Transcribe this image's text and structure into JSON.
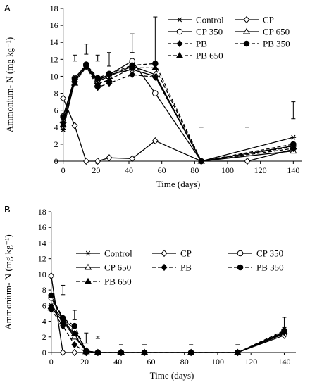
{
  "chart_data": [
    {
      "type": "line",
      "panel_label": "A",
      "xlabel": "Time (days)",
      "ylabel": "Ammonium- N (mg kg⁻¹)",
      "xlim": [
        -5,
        145
      ],
      "ylim": [
        0,
        18
      ],
      "xticks": [
        0,
        20,
        40,
        60,
        80,
        100,
        120,
        140
      ],
      "yticks": [
        0,
        2,
        4,
        6,
        8,
        10,
        12,
        14,
        16,
        18
      ],
      "grid": false,
      "legend": {
        "placement": "top-right",
        "columns": 2
      },
      "series": [
        {
          "name": "Control",
          "style": "solid",
          "marker": "asterisk",
          "x": [
            0,
            7,
            14,
            21,
            28,
            42,
            56,
            84,
            140
          ],
          "y": [
            3.7,
            9.5,
            11.2,
            9.5,
            10.2,
            10.8,
            10.0,
            0,
            2.8
          ]
        },
        {
          "name": "CP",
          "style": "solid",
          "marker": "diamond-open",
          "x": [
            0,
            7,
            14,
            21,
            28,
            42,
            56,
            84,
            112,
            140
          ],
          "y": [
            7.4,
            4.2,
            0,
            0,
            0.4,
            0.3,
            2.4,
            0,
            0,
            1.4
          ]
        },
        {
          "name": "CP 350",
          "style": "solid",
          "marker": "circle-open",
          "x": [
            0,
            7,
            14,
            21,
            28,
            42,
            56,
            84,
            140
          ],
          "y": [
            5.3,
            9.8,
            11.3,
            9.6,
            10.2,
            11.8,
            8.0,
            0,
            1.8
          ]
        },
        {
          "name": "CP 650",
          "style": "solid",
          "marker": "triangle-open",
          "x": [
            0,
            7,
            14,
            21,
            28,
            42,
            56,
            84,
            140
          ],
          "y": [
            4.8,
            9.6,
            11.0,
            9.4,
            10.0,
            11.2,
            10.2,
            0,
            1.2
          ]
        },
        {
          "name": "PB",
          "style": "dashed",
          "marker": "diamond-filled",
          "x": [
            0,
            7,
            14,
            21,
            28,
            42,
            56,
            84,
            140
          ],
          "y": [
            4.5,
            9.3,
            11.2,
            8.7,
            9.2,
            10.2,
            9.9,
            0,
            1.5
          ]
        },
        {
          "name": "PB 350",
          "style": "dashed",
          "marker": "circle-filled",
          "x": [
            0,
            7,
            14,
            21,
            28,
            42,
            56,
            84,
            140
          ],
          "y": [
            5.2,
            9.7,
            11.4,
            9.8,
            10.3,
            11.3,
            11.5,
            0,
            2.0
          ]
        },
        {
          "name": "PB 650",
          "style": "dashed",
          "marker": "triangle-filled",
          "x": [
            0,
            7,
            14,
            21,
            28,
            42,
            56,
            84,
            140
          ],
          "y": [
            4.3,
            9.2,
            11.1,
            9.1,
            9.6,
            11.0,
            11.0,
            0,
            1.7
          ]
        }
      ],
      "error_bars": [
        {
          "x": 7,
          "low": 11.8,
          "high": 12.5
        },
        {
          "x": 14,
          "low": 12.6,
          "high": 13.8
        },
        {
          "x": 21,
          "low": 11.8,
          "high": 12.5
        },
        {
          "x": 28,
          "low": 11.2,
          "high": 12.8
        },
        {
          "x": 42,
          "low": 12.8,
          "high": 15.0
        },
        {
          "x": 56,
          "low": 11.8,
          "high": 17.0
        },
        {
          "x": 84,
          "low": 4.0,
          "high": 4.0
        },
        {
          "x": 112,
          "low": 4.0,
          "high": 4.0
        },
        {
          "x": 140,
          "low": 5.0,
          "high": 7.0
        }
      ]
    },
    {
      "type": "line",
      "panel_label": "B",
      "xlabel": "Time (days)",
      "ylabel": "Ammonium- N (mg kg⁻¹)",
      "xlim": [
        -2,
        147
      ],
      "ylim": [
        0,
        18
      ],
      "xticks": [
        0,
        20,
        40,
        60,
        80,
        100,
        120,
        140
      ],
      "yticks": [
        0,
        2,
        4,
        6,
        8,
        10,
        12,
        14,
        16,
        18
      ],
      "grid": false,
      "legend": {
        "placement": "top",
        "columns": 3
      },
      "series": [
        {
          "name": "Control",
          "style": "solid",
          "marker": "asterisk",
          "x": [
            0,
            7,
            14,
            21,
            28,
            42,
            56,
            84,
            112,
            140
          ],
          "y": [
            6.0,
            4.3,
            2.2,
            0.2,
            0,
            0,
            0,
            0,
            0,
            2.6
          ]
        },
        {
          "name": "CP",
          "style": "solid",
          "marker": "diamond-open",
          "x": [
            0,
            7,
            14,
            21,
            28,
            42,
            56,
            84,
            112,
            140
          ],
          "y": [
            9.8,
            0,
            0,
            0,
            0,
            0,
            0,
            0,
            0,
            2.2
          ]
        },
        {
          "name": "CP 350",
          "style": "solid",
          "marker": "circle-open",
          "x": [
            0,
            7,
            14,
            21,
            28,
            42,
            56,
            84,
            112,
            140
          ],
          "y": [
            7.0,
            4.3,
            3.0,
            0.2,
            0,
            0,
            0,
            0,
            0,
            2.5
          ]
        },
        {
          "name": "CP 650",
          "style": "solid",
          "marker": "triangle-open",
          "x": [
            0,
            7,
            14,
            21,
            28,
            42,
            56,
            84,
            112,
            140
          ],
          "y": [
            5.7,
            4.0,
            2.0,
            0.2,
            0,
            0,
            0,
            0,
            0,
            2.4
          ]
        },
        {
          "name": "PB",
          "style": "dashed",
          "marker": "diamond-filled",
          "x": [
            0,
            7,
            14,
            21,
            28,
            42,
            56,
            84,
            112,
            140
          ],
          "y": [
            5.5,
            3.4,
            1.0,
            0,
            0,
            0,
            0,
            0,
            0,
            2.6
          ]
        },
        {
          "name": "PB 350",
          "style": "dashed",
          "marker": "circle-filled",
          "x": [
            0,
            7,
            14,
            21,
            28,
            42,
            56,
            84,
            112,
            140
          ],
          "y": [
            7.3,
            4.4,
            3.4,
            0.2,
            0,
            0,
            0,
            0,
            0,
            2.8
          ]
        },
        {
          "name": "PB 650",
          "style": "dashed",
          "marker": "triangle-filled",
          "x": [
            0,
            7,
            14,
            21,
            28,
            42,
            56,
            84,
            112,
            140
          ],
          "y": [
            5.9,
            3.9,
            2.4,
            0.1,
            0,
            0,
            0,
            0,
            0,
            2.7
          ]
        }
      ],
      "error_bars": [
        {
          "x": 7,
          "low": 7.4,
          "high": 8.6
        },
        {
          "x": 14,
          "low": 4.2,
          "high": 5.4
        },
        {
          "x": 21,
          "low": 1.2,
          "high": 2.5
        },
        {
          "x": 28,
          "low": 1.8,
          "high": 2.1
        },
        {
          "x": 42,
          "low": 1.0,
          "high": 1.0
        },
        {
          "x": 56,
          "low": 1.0,
          "high": 1.0
        },
        {
          "x": 84,
          "low": 1.0,
          "high": 1.0
        },
        {
          "x": 112,
          "low": 1.0,
          "high": 1.0
        },
        {
          "x": 140,
          "low": 3.2,
          "high": 4.5
        }
      ]
    }
  ]
}
